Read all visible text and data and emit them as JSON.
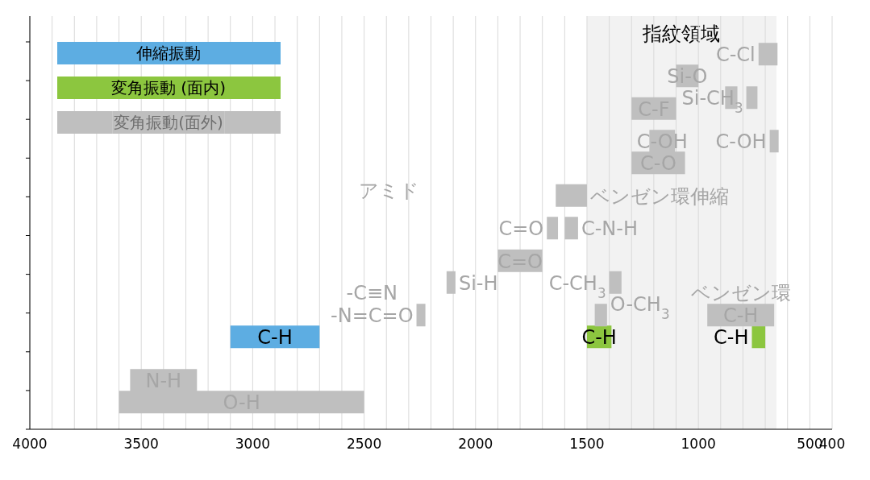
{
  "chart_data": {
    "type": "bar",
    "orientation": "horizontal",
    "legend": "top left",
    "grid": "x",
    "tick_labels": "x",
    "categories": [
      null,
      null,
      null,
      null,
      null,
      null,
      null,
      null,
      null,
      null,
      null,
      null,
      null,
      null,
      null,
      null,
      null,
      null,
      null,
      null,
      null,
      null,
      null,
      null,
      null,
      null,
      null,
      null,
      null,
      null,
      null,
      null,
      null,
      null,
      null,
      null,
      null,
      null
    ],
    "xlim": [
      4000,
      400
    ],
    "xticks": [
      4000,
      {
        "value": 3900,
        "label": null
      },
      {
        "value": 3800,
        "label": null
      },
      {
        "value": 3700,
        "label": null
      },
      {
        "value": 3600,
        "label": null
      },
      3500,
      {
        "value": 3400,
        "label": null
      },
      {
        "value": 3300,
        "label": null
      },
      {
        "value": 3200,
        "label": null
      },
      {
        "value": 3100,
        "label": null
      },
      3000,
      {
        "value": 2900,
        "label": null
      },
      {
        "value": 2800,
        "label": null
      },
      {
        "value": 2700,
        "label": null
      },
      {
        "value": 2600,
        "label": null
      },
      2500,
      {
        "value": 2400,
        "label": null
      },
      {
        "value": 2300,
        "label": null
      },
      {
        "value": 2200,
        "label": null
      },
      {
        "value": 2100,
        "label": null
      },
      2000,
      {
        "value": 1900,
        "label": null
      },
      {
        "value": 1800,
        "label": null
      },
      {
        "value": 1700,
        "label": null
      },
      {
        "value": 1600,
        "label": null
      },
      1500,
      {
        "value": 1400,
        "label": null
      },
      {
        "value": 1300,
        "label": null
      },
      {
        "value": 1200,
        "label": null
      },
      {
        "value": 1100,
        "label": null
      },
      1000,
      {
        "value": 900,
        "label": null
      },
      {
        "value": 800,
        "label": null
      },
      {
        "value": 700,
        "label": null
      },
      {
        "value": 600,
        "label": null
      },
      500,
      400
    ],
    "bands": [
      {
        "axis": "x",
        "from": 1500,
        "to": 650,
        "label": "指紋領域",
        "color": "#f2f2f2"
      }
    ],
    "series": [
      {
        "name": "伸縮振動",
        "color": "#5dade2",
        "values": [
          null,
          null,
          null,
          null,
          null,
          null,
          null,
          null,
          null,
          null,
          null,
          null,
          null,
          null,
          null,
          null,
          null,
          null,
          null,
          null,
          null,
          null,
          null,
          null,
          null,
          null,
          null,
          null,
          null,
          null,
          null,
          null,
          null,
          null,
          null,
          null,
          null,
          null
        ]
      },
      {
        "name": "変角振動 (面内)",
        "color": "#8cc63f",
        "values": [
          null,
          null,
          null,
          null,
          null,
          null,
          null,
          null,
          null,
          null,
          null,
          null,
          null,
          null,
          null,
          null,
          null,
          null,
          null,
          null,
          null,
          null,
          null,
          null,
          null,
          null,
          null,
          null,
          null,
          null,
          null,
          null,
          null,
          null,
          null,
          null,
          null,
          null
        ]
      },
      {
        "name": "変角振動(面外)",
        "color": "#bfbfbf",
        "values": [
          null,
          null,
          null,
          null,
          null,
          null,
          null,
          null,
          null,
          null,
          null,
          null,
          null,
          null,
          null,
          null,
          null,
          null,
          null,
          null,
          null,
          null,
          null,
          null,
          null,
          null,
          null,
          null,
          null,
          null,
          null,
          null,
          null,
          null,
          null,
          null,
          null,
          null
        ]
      },
      {
        "name": "C-H",
        "color": "#5dade2",
        "base": [
          null,
          null,
          null,
          null,
          null,
          null,
          null,
          null,
          null,
          null,
          null,
          null,
          null,
          null,
          null,
          null,
          null,
          null,
          null,
          null,
          null,
          null,
          null,
          null,
          null,
          null,
          null,
          null,
          null,
          3100,
          null,
          null,
          null,
          null,
          null,
          null,
          null,
          null
        ],
        "values": [
          null,
          null,
          null,
          null,
          null,
          null,
          null,
          null,
          null,
          null,
          null,
          null,
          null,
          null,
          null,
          null,
          null,
          null,
          null,
          null,
          null,
          null,
          null,
          null,
          null,
          null,
          null,
          null,
          null,
          -400,
          null,
          null,
          null,
          null,
          null,
          null,
          null,
          null
        ]
      },
      {
        "name": "C-H",
        "color": "#8cc63f",
        "base": [
          null,
          null,
          null,
          null,
          null,
          null,
          null,
          null,
          null,
          null,
          null,
          null,
          null,
          null,
          null,
          null,
          null,
          null,
          null,
          null,
          null,
          null,
          null,
          null,
          null,
          null,
          null,
          null,
          null,
          1500,
          null,
          null,
          null,
          null,
          null,
          null,
          null,
          null
        ],
        "values": [
          null,
          null,
          null,
          null,
          null,
          null,
          null,
          null,
          null,
          null,
          null,
          null,
          null,
          null,
          null,
          null,
          null,
          null,
          null,
          null,
          null,
          null,
          null,
          null,
          null,
          null,
          null,
          null,
          null,
          -110,
          null,
          null,
          null,
          null,
          null,
          null,
          null,
          null
        ]
      },
      {
        "name": "C-H",
        "color": "#8cc63f",
        "base": [
          null,
          null,
          null,
          null,
          null,
          null,
          null,
          null,
          null,
          null,
          null,
          null,
          null,
          null,
          null,
          null,
          null,
          null,
          null,
          null,
          null,
          null,
          null,
          null,
          null,
          null,
          null,
          null,
          null,
          760,
          null,
          null,
          null,
          null,
          null,
          null,
          null,
          null
        ],
        "values": [
          null,
          null,
          null,
          null,
          null,
          null,
          null,
          null,
          null,
          null,
          null,
          null,
          null,
          null,
          null,
          null,
          null,
          null,
          null,
          null,
          null,
          null,
          null,
          null,
          null,
          null,
          null,
          null,
          null,
          -60,
          null,
          null,
          null,
          null,
          null,
          null,
          null,
          null
        ]
      },
      {
        "name": "O-H",
        "color": "#bfbfbf",
        "base": [
          null,
          null,
          null,
          null,
          null,
          null,
          null,
          null,
          null,
          null,
          null,
          null,
          null,
          null,
          null,
          null,
          null,
          null,
          null,
          null,
          null,
          null,
          null,
          null,
          null,
          null,
          null,
          null,
          null,
          null,
          null,
          null,
          null,
          null,
          null,
          3600,
          null,
          null
        ],
        "values": [
          null,
          null,
          null,
          null,
          null,
          null,
          null,
          null,
          null,
          null,
          null,
          null,
          null,
          null,
          null,
          null,
          null,
          null,
          null,
          null,
          null,
          null,
          null,
          null,
          null,
          null,
          null,
          null,
          null,
          null,
          null,
          null,
          null,
          null,
          null,
          -1100,
          null,
          null
        ]
      },
      {
        "name": "N-H",
        "color": "#bfbfbf",
        "base": [
          null,
          null,
          null,
          null,
          null,
          null,
          null,
          null,
          null,
          null,
          null,
          null,
          null,
          null,
          null,
          null,
          null,
          null,
          null,
          null,
          null,
          null,
          null,
          null,
          null,
          null,
          null,
          null,
          null,
          null,
          null,
          null,
          null,
          3550,
          null,
          null,
          null,
          null
        ],
        "values": [
          null,
          null,
          null,
          null,
          null,
          null,
          null,
          null,
          null,
          null,
          null,
          null,
          null,
          null,
          null,
          null,
          null,
          null,
          null,
          null,
          null,
          null,
          null,
          null,
          null,
          null,
          null,
          null,
          null,
          null,
          null,
          null,
          null,
          -300,
          null,
          null,
          null,
          null
        ]
      },
      {
        "name": "-C≡N\n-N=C=O",
        "color": "#bfbfbf",
        "base": [
          null,
          null,
          null,
          null,
          null,
          null,
          null,
          null,
          null,
          null,
          null,
          null,
          null,
          null,
          null,
          null,
          null,
          null,
          null,
          null,
          null,
          null,
          null,
          null,
          null,
          null,
          null,
          2265,
          null,
          null,
          null,
          null,
          null,
          null,
          null,
          null,
          null,
          null
        ],
        "values": [
          null,
          null,
          null,
          null,
          null,
          null,
          null,
          null,
          null,
          null,
          null,
          null,
          null,
          null,
          null,
          null,
          null,
          null,
          null,
          null,
          null,
          null,
          null,
          null,
          null,
          null,
          null,
          -40,
          null,
          null,
          null,
          null,
          null,
          null,
          null,
          null,
          null,
          null
        ]
      },
      {
        "name": "Si-H",
        "color": "#bfbfbf",
        "base": [
          null,
          null,
          null,
          null,
          null,
          null,
          null,
          null,
          null,
          null,
          null,
          null,
          null,
          null,
          null,
          null,
          null,
          null,
          null,
          null,
          null,
          null,
          null,
          null,
          2130,
          null,
          null,
          null,
          null,
          null,
          null,
          null,
          null,
          null,
          null,
          null,
          null,
          null
        ],
        "values": [
          null,
          null,
          null,
          null,
          null,
          null,
          null,
          null,
          null,
          null,
          null,
          null,
          null,
          null,
          null,
          null,
          null,
          null,
          null,
          null,
          null,
          null,
          null,
          null,
          -40,
          null,
          null,
          null,
          null,
          null,
          null,
          null,
          null,
          null,
          null,
          null,
          null,
          null
        ]
      },
      {
        "name": "C=O",
        "color": "#bfbfbf",
        "base": [
          null,
          null,
          null,
          null,
          null,
          null,
          null,
          null,
          null,
          null,
          null,
          null,
          null,
          null,
          null,
          null,
          null,
          null,
          null,
          1680,
          null,
          null,
          1900,
          null,
          null,
          null,
          null,
          null,
          null,
          null,
          null,
          null,
          null,
          null,
          null,
          null,
          null,
          null
        ],
        "values": [
          null,
          null,
          null,
          null,
          null,
          null,
          null,
          null,
          null,
          null,
          null,
          null,
          null,
          null,
          null,
          null,
          null,
          null,
          null,
          -50,
          null,
          null,
          -200,
          null,
          null,
          null,
          null,
          null,
          null,
          null,
          null,
          null,
          null,
          null,
          null,
          null,
          null,
          null
        ]
      },
      {
        "name": "ベンゼン環伸縮",
        "color": "#bfbfbf",
        "base": [
          null,
          null,
          null,
          null,
          null,
          null,
          null,
          null,
          null,
          null,
          null,
          null,
          null,
          null,
          null,
          null,
          1640,
          null,
          null,
          null,
          null,
          null,
          null,
          null,
          null,
          null,
          null,
          null,
          null,
          null,
          null,
          null,
          null,
          null,
          null,
          null,
          null,
          null
        ],
        "values": [
          null,
          null,
          null,
          null,
          null,
          null,
          null,
          null,
          null,
          null,
          null,
          null,
          null,
          null,
          null,
          null,
          -140,
          null,
          null,
          null,
          null,
          null,
          null,
          null,
          null,
          null,
          null,
          null,
          null,
          null,
          null,
          null,
          null,
          null,
          null,
          null,
          null,
          null
        ]
      },
      {
        "name": "C-N-H",
        "color": "#bfbfbf",
        "base": [
          null,
          null,
          null,
          null,
          null,
          null,
          null,
          null,
          null,
          null,
          null,
          null,
          null,
          null,
          null,
          null,
          null,
          null,
          null,
          1600,
          null,
          null,
          null,
          null,
          null,
          null,
          null,
          null,
          null,
          null,
          null,
          null,
          null,
          null,
          null,
          null,
          null,
          null
        ],
        "values": [
          null,
          null,
          null,
          null,
          null,
          null,
          null,
          null,
          null,
          null,
          null,
          null,
          null,
          null,
          null,
          null,
          null,
          null,
          null,
          -60,
          null,
          null,
          null,
          null,
          null,
          null,
          null,
          null,
          null,
          null,
          null,
          null,
          null,
          null,
          null,
          null,
          null,
          null
        ]
      },
      {
        "name": "C-CH$_{3}$",
        "color": "#bfbfbf",
        "base": [
          null,
          null,
          null,
          null,
          null,
          null,
          null,
          null,
          null,
          null,
          null,
          null,
          null,
          null,
          null,
          null,
          null,
          null,
          null,
          null,
          null,
          null,
          null,
          null,
          1400,
          null,
          null,
          null,
          null,
          null,
          null,
          null,
          null,
          null,
          null,
          null,
          null,
          null
        ],
        "values": [
          null,
          null,
          null,
          null,
          null,
          null,
          null,
          null,
          null,
          null,
          null,
          null,
          null,
          null,
          null,
          null,
          null,
          null,
          null,
          null,
          null,
          null,
          null,
          null,
          -55,
          null,
          null,
          null,
          null,
          null,
          null,
          null,
          null,
          null,
          null,
          null,
          null,
          null
        ]
      },
      {
        "name": "O-CH$_{3}$",
        "color": "#bfbfbf",
        "base": [
          null,
          null,
          null,
          null,
          null,
          null,
          null,
          null,
          null,
          null,
          null,
          null,
          null,
          null,
          null,
          null,
          null,
          null,
          null,
          null,
          null,
          null,
          null,
          null,
          null,
          null,
          null,
          1465,
          null,
          null,
          null,
          null,
          null,
          null,
          null,
          null,
          null,
          null
        ],
        "values": [
          null,
          null,
          null,
          null,
          null,
          null,
          null,
          null,
          null,
          null,
          null,
          null,
          null,
          null,
          null,
          null,
          null,
          null,
          null,
          null,
          null,
          null,
          null,
          null,
          null,
          null,
          null,
          -55,
          null,
          null,
          null,
          null,
          null,
          null,
          null,
          null,
          null,
          null
        ]
      },
      {
        "name": "ベンゼン環\nC-H",
        "color": "#bfbfbf",
        "base": [
          null,
          null,
          null,
          null,
          null,
          null,
          null,
          null,
          null,
          null,
          null,
          null,
          null,
          null,
          null,
          null,
          null,
          null,
          null,
          null,
          null,
          null,
          null,
          null,
          null,
          null,
          null,
          960,
          null,
          null,
          null,
          null,
          null,
          null,
          null,
          null,
          null,
          null
        ],
        "values": [
          null,
          null,
          null,
          null,
          null,
          null,
          null,
          null,
          null,
          null,
          null,
          null,
          null,
          null,
          null,
          null,
          null,
          null,
          null,
          null,
          null,
          null,
          null,
          null,
          null,
          null,
          null,
          -300,
          null,
          null,
          null,
          null,
          null,
          null,
          null,
          null,
          null,
          null
        ]
      },
      {
        "name": "C-O",
        "color": "#bfbfbf",
        "base": [
          null,
          null,
          null,
          null,
          null,
          null,
          null,
          null,
          null,
          null,
          null,
          null,
          null,
          1300,
          null,
          null,
          null,
          null,
          null,
          null,
          null,
          null,
          null,
          null,
          null,
          null,
          null,
          null,
          null,
          null,
          null,
          null,
          null,
          null,
          null,
          null,
          null,
          null
        ],
        "values": [
          null,
          null,
          null,
          null,
          null,
          null,
          null,
          null,
          null,
          null,
          null,
          null,
          null,
          -240,
          null,
          null,
          null,
          null,
          null,
          null,
          null,
          null,
          null,
          null,
          null,
          null,
          null,
          null,
          null,
          null,
          null,
          null,
          null,
          null,
          null,
          null,
          null,
          null
        ]
      },
      {
        "name": "C-OH",
        "color": "#bfbfbf",
        "base": [
          null,
          null,
          null,
          null,
          null,
          null,
          null,
          null,
          null,
          null,
          null,
          1220,
          null,
          null,
          null,
          null,
          null,
          null,
          null,
          null,
          null,
          null,
          null,
          null,
          null,
          null,
          null,
          null,
          null,
          null,
          null,
          null,
          null,
          null,
          null,
          null,
          null,
          null
        ],
        "values": [
          null,
          null,
          null,
          null,
          null,
          null,
          null,
          null,
          null,
          null,
          null,
          -115,
          null,
          null,
          null,
          null,
          null,
          null,
          null,
          null,
          null,
          null,
          null,
          null,
          null,
          null,
          null,
          null,
          null,
          null,
          null,
          null,
          null,
          null,
          null,
          null,
          null,
          null
        ]
      },
      {
        "name": "C-OH",
        "color": "#bfbfbf",
        "base": [
          null,
          null,
          null,
          null,
          null,
          null,
          null,
          null,
          null,
          null,
          null,
          680,
          null,
          null,
          null,
          null,
          null,
          null,
          null,
          null,
          null,
          null,
          null,
          null,
          null,
          null,
          null,
          null,
          null,
          null,
          null,
          null,
          null,
          null,
          null,
          null,
          null,
          null
        ],
        "values": [
          null,
          null,
          null,
          null,
          null,
          null,
          null,
          null,
          null,
          null,
          null,
          -40,
          null,
          null,
          null,
          null,
          null,
          null,
          null,
          null,
          null,
          null,
          null,
          null,
          null,
          null,
          null,
          null,
          null,
          null,
          null,
          null,
          null,
          null,
          null,
          null,
          null,
          null
        ]
      },
      {
        "name": "C-F",
        "color": "#bfbfbf",
        "base": [
          null,
          null,
          null,
          null,
          null,
          null,
          null,
          null,
          1300,
          null,
          null,
          null,
          null,
          null,
          null,
          null,
          null,
          null,
          null,
          null,
          null,
          null,
          null,
          null,
          null,
          null,
          null,
          null,
          null,
          null,
          null,
          null,
          null,
          null,
          null,
          null,
          null,
          null
        ],
        "values": [
          null,
          null,
          null,
          null,
          null,
          null,
          null,
          null,
          -200,
          null,
          null,
          null,
          null,
          null,
          null,
          null,
          null,
          null,
          null,
          null,
          null,
          null,
          null,
          null,
          null,
          null,
          null,
          null,
          null,
          null,
          null,
          null,
          null,
          null,
          null,
          null,
          null,
          null
        ]
      },
      {
        "name": "Si-CH$_{3}$",
        "color": "#bfbfbf",
        "base": [
          null,
          null,
          null,
          null,
          null,
          null,
          null,
          785,
          null,
          null,
          null,
          null,
          null,
          null,
          null,
          null,
          null,
          null,
          null,
          null,
          null,
          null,
          null,
          null,
          null,
          null,
          null,
          null,
          null,
          null,
          null,
          null,
          null,
          null,
          null,
          null,
          null,
          null
        ],
        "values": [
          null,
          null,
          null,
          null,
          null,
          null,
          null,
          -50,
          null,
          null,
          null,
          null,
          null,
          null,
          null,
          null,
          null,
          null,
          null,
          null,
          null,
          null,
          null,
          null,
          null,
          null,
          null,
          null,
          null,
          null,
          null,
          null,
          null,
          null,
          null,
          null,
          null,
          null
        ]
      },
      {
        "color": "#bfbfbf",
        "base": [
          null,
          null,
          null,
          null,
          null,
          null,
          null,
          880,
          null,
          null,
          null,
          null,
          null,
          null,
          null,
          null,
          null,
          null,
          null,
          null,
          null,
          null,
          null,
          null,
          null,
          null,
          null,
          null,
          null,
          null,
          null,
          null,
          null,
          null,
          null,
          null,
          null,
          null
        ],
        "values": [
          null,
          null,
          null,
          null,
          null,
          null,
          null,
          -55,
          null,
          null,
          null,
          null,
          null,
          null,
          null,
          null,
          null,
          null,
          null,
          null,
          null,
          null,
          null,
          null,
          null,
          null,
          null,
          null,
          null,
          null,
          null,
          null,
          null,
          null,
          null,
          null,
          null,
          null
        ]
      },
      {
        "name": "Si-O",
        "color": "#bfbfbf",
        "base": [
          null,
          null,
          null,
          null,
          null,
          1100,
          null,
          null,
          null,
          null,
          null,
          null,
          null,
          null,
          null,
          null,
          null,
          null,
          null,
          null,
          null,
          null,
          null,
          null,
          null,
          null,
          null,
          null,
          null,
          null,
          null,
          null,
          null,
          null,
          null,
          null,
          null,
          null
        ],
        "values": [
          null,
          null,
          null,
          null,
          null,
          -100,
          null,
          null,
          null,
          null,
          null,
          null,
          null,
          null,
          null,
          null,
          null,
          null,
          null,
          null,
          null,
          null,
          null,
          null,
          null,
          null,
          null,
          null,
          null,
          null,
          null,
          null,
          null,
          null,
          null,
          null,
          null,
          null
        ]
      },
      {
        "name": "C-Cl",
        "color": "#bfbfbf",
        "base": [
          null,
          null,
          null,
          730,
          null,
          null,
          null,
          null,
          null,
          null,
          null,
          null,
          null,
          null,
          null,
          null,
          null,
          null,
          null,
          null,
          null,
          null,
          null,
          null,
          null,
          null,
          null,
          null,
          null,
          null,
          null,
          null,
          null,
          null,
          null,
          null,
          null,
          null
        ],
        "values": [
          null,
          null,
          null,
          -85,
          null,
          null,
          null,
          null,
          null,
          null,
          null,
          null,
          null,
          null,
          null,
          null,
          null,
          null,
          null,
          null,
          null,
          null,
          null,
          null,
          null,
          null,
          null,
          null,
          null,
          null,
          null,
          null,
          null,
          null,
          null,
          null,
          null,
          null
        ]
      }
    ],
    "annotations": [
      "アミド"
    ]
  }
}
